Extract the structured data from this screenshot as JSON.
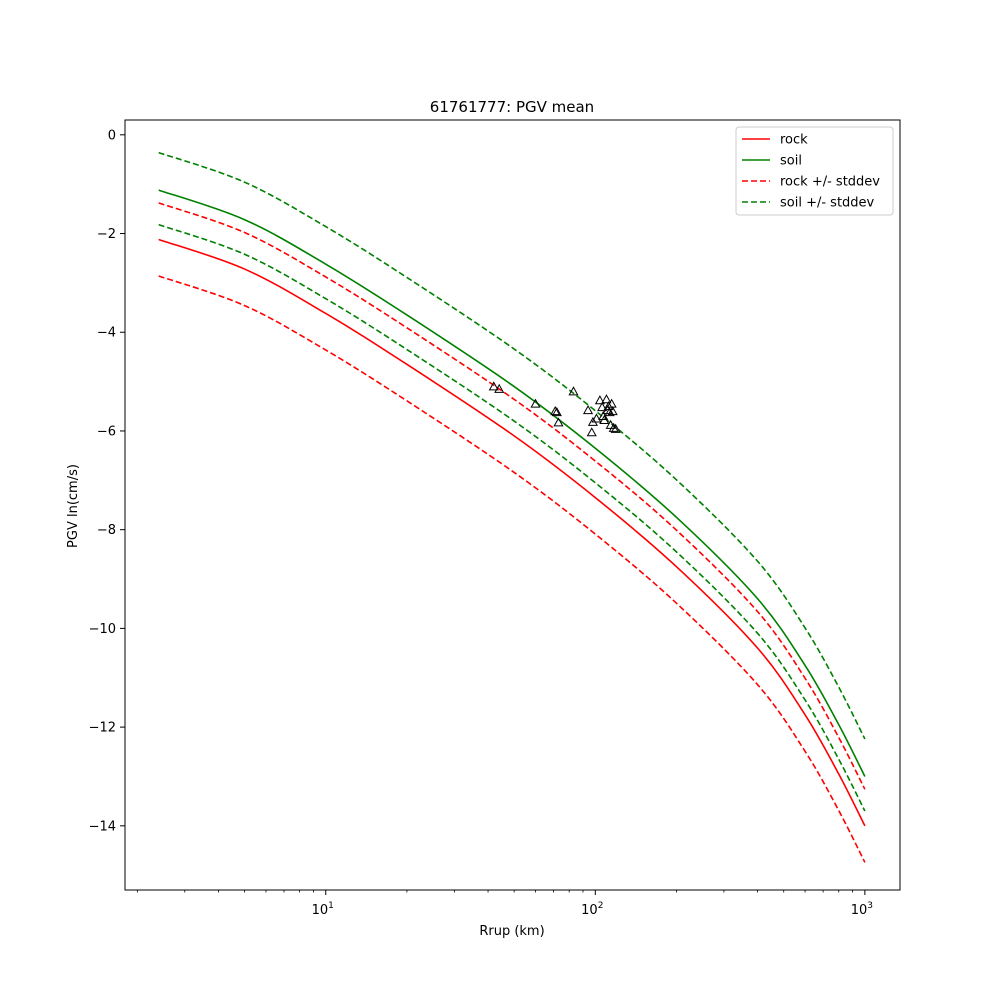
{
  "chart_data": {
    "type": "line",
    "title": "61761777: PGV mean",
    "xlabel": "Rrup (km)",
    "ylabel": "PGV ln(cm/s)",
    "xscale": "log",
    "xlim": [
      1.8,
      1350
    ],
    "ylim": [
      -15.3,
      0.3
    ],
    "xticks": [
      10,
      100,
      1000
    ],
    "xtick_labels": [
      {
        "base": "10",
        "exp": "1"
      },
      {
        "base": "10",
        "exp": "2"
      },
      {
        "base": "10",
        "exp": "3"
      }
    ],
    "yticks": [
      0,
      -2,
      -4,
      -6,
      -8,
      -10,
      -12,
      -14
    ],
    "ytick_labels": [
      "0",
      "−2",
      "−4",
      "−6",
      "−8",
      "−10",
      "−12",
      "−14"
    ],
    "grid": false,
    "legend_position": "top-right",
    "legend": [
      "rock",
      "soil",
      "rock +/- stddev",
      "soil +/- stddev"
    ],
    "x": [
      2.4,
      5,
      10,
      20,
      50,
      100,
      200,
      400,
      600,
      800,
      1000
    ],
    "series": [
      {
        "name": "rock",
        "color": "#ff0000",
        "dash": "solid",
        "legend_index": 0,
        "y": [
          -2.12,
          -2.72,
          -3.62,
          -4.65,
          -6.1,
          -7.35,
          -8.75,
          -10.4,
          -11.75,
          -12.95,
          -14.0
        ]
      },
      {
        "name": "soil",
        "color": "#008000",
        "dash": "solid",
        "legend_index": 1,
        "y": [
          -1.12,
          -1.72,
          -2.62,
          -3.65,
          -5.1,
          -6.35,
          -7.75,
          -9.4,
          -10.75,
          -11.95,
          -13.0
        ]
      },
      {
        "name": "rock +/- stddev",
        "color": "#ff0000",
        "dash": "dashed",
        "legend_index": 2,
        "y": [
          -1.38,
          -1.98,
          -2.88,
          -3.91,
          -5.36,
          -6.61,
          -8.01,
          -9.66,
          -11.01,
          -12.21,
          -13.26
        ]
      },
      {
        "name": "rock +/- stddev",
        "color": "#ff0000",
        "dash": "dashed",
        "legend_index": null,
        "y": [
          -2.86,
          -3.46,
          -4.36,
          -5.39,
          -6.84,
          -8.09,
          -9.49,
          -11.14,
          -12.49,
          -13.69,
          -14.74
        ]
      },
      {
        "name": "soil +/- stddev",
        "color": "#008000",
        "dash": "dashed",
        "legend_index": 3,
        "y": [
          -0.36,
          -0.96,
          -1.86,
          -2.89,
          -4.34,
          -5.59,
          -6.99,
          -8.64,
          -9.99,
          -11.19,
          -12.24
        ]
      },
      {
        "name": "soil +/- stddev",
        "color": "#008000",
        "dash": "dashed",
        "legend_index": null,
        "y": [
          -1.82,
          -2.42,
          -3.32,
          -4.35,
          -5.8,
          -7.05,
          -8.45,
          -10.1,
          -11.45,
          -12.65,
          -13.7
        ]
      }
    ],
    "observations": {
      "marker": "triangle",
      "color": "#000000",
      "points": [
        {
          "x": 42,
          "y": -5.1
        },
        {
          "x": 44,
          "y": -5.15
        },
        {
          "x": 60,
          "y": -5.45
        },
        {
          "x": 71,
          "y": -5.6
        },
        {
          "x": 72,
          "y": -5.62
        },
        {
          "x": 73,
          "y": -5.83
        },
        {
          "x": 83,
          "y": -5.2
        },
        {
          "x": 94,
          "y": -5.58
        },
        {
          "x": 97,
          "y": -6.03
        },
        {
          "x": 98,
          "y": -5.82
        },
        {
          "x": 101,
          "y": -5.75
        },
        {
          "x": 104,
          "y": -5.38
        },
        {
          "x": 106,
          "y": -5.52
        },
        {
          "x": 107,
          "y": -5.7
        },
        {
          "x": 108,
          "y": -5.78
        },
        {
          "x": 110,
          "y": -5.36
        },
        {
          "x": 111,
          "y": -5.58
        },
        {
          "x": 112,
          "y": -5.5
        },
        {
          "x": 113,
          "y": -5.62
        },
        {
          "x": 114,
          "y": -5.88
        },
        {
          "x": 115,
          "y": -5.45
        },
        {
          "x": 116,
          "y": -5.6
        },
        {
          "x": 117,
          "y": -5.94
        },
        {
          "x": 119,
          "y": -5.96
        }
      ]
    }
  }
}
